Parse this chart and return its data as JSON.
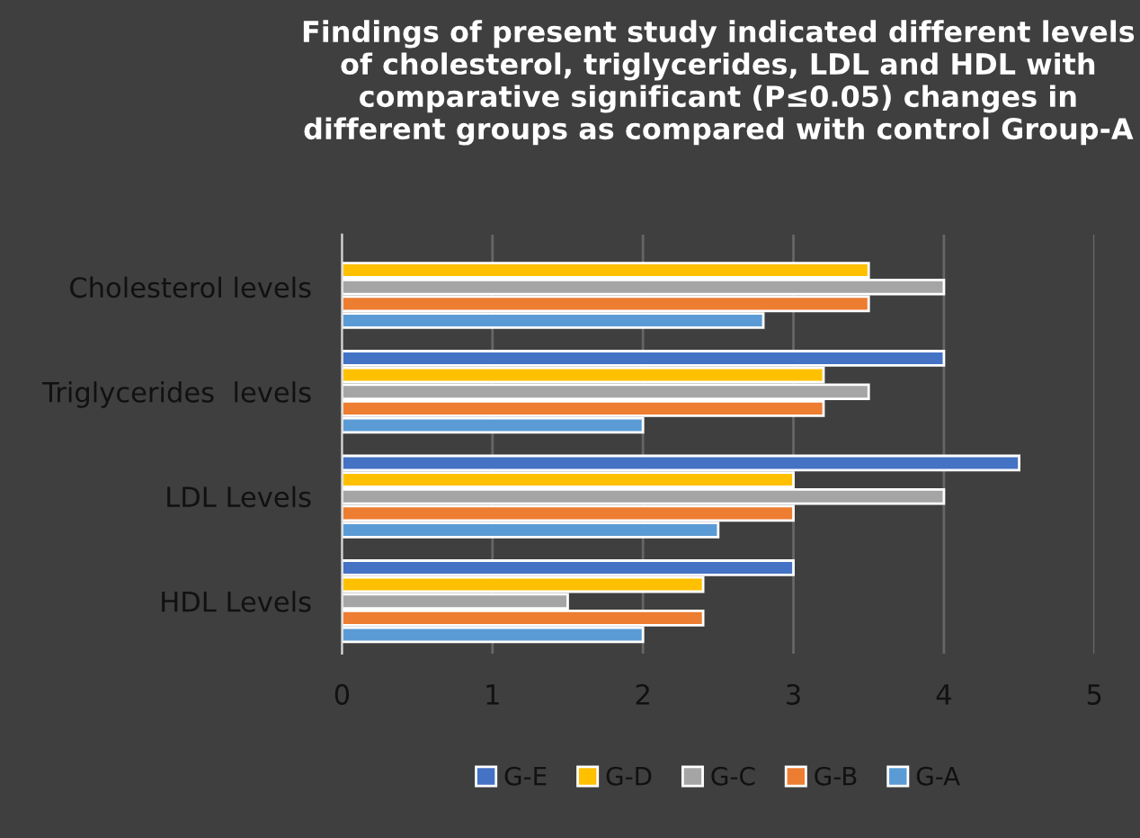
{
  "chart_data": {
    "type": "bar",
    "orientation": "horizontal",
    "title": "Findings of present study indicated different levels of cholesterol, triglycerides, LDL and HDL with comparative significant (P≤0.05) changes in different groups as compared with control Group-A",
    "categories": [
      "Cholesterol levels",
      "Triglycerides  levels",
      "LDL Levels",
      "HDL Levels"
    ],
    "series": [
      {
        "name": "G-E",
        "color": "#4472c4",
        "values": [
          null,
          4,
          4.5,
          3
        ]
      },
      {
        "name": "G-D",
        "color": "#ffc000",
        "values": [
          3.5,
          3.2,
          3,
          2.4
        ]
      },
      {
        "name": "G-C",
        "color": "#a5a5a5",
        "values": [
          4,
          3.5,
          4,
          1.5
        ]
      },
      {
        "name": "G-B",
        "color": "#ed7d31",
        "values": [
          3.5,
          3.2,
          3,
          2.4
        ]
      },
      {
        "name": "G-A",
        "color": "#5b9bd5",
        "values": [
          2.8,
          2,
          2.5,
          2
        ]
      }
    ],
    "xlim": [
      0,
      5
    ],
    "xticks": [
      0,
      1,
      2,
      3,
      4,
      5
    ],
    "grid": "x",
    "legend": "bottom"
  }
}
